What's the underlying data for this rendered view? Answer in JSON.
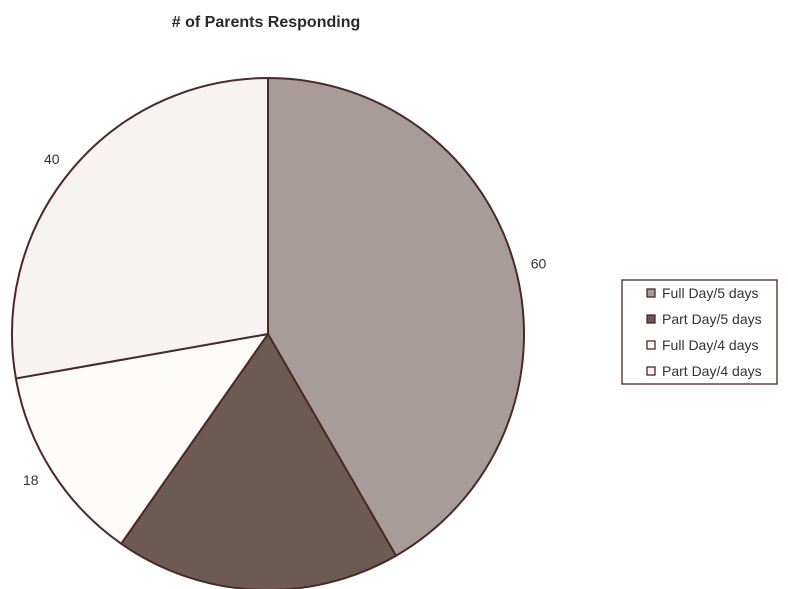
{
  "chart_data": {
    "type": "pie",
    "title": "# of Parents Responding",
    "categories": [
      "Full Day/5 days",
      "Part Day/5 days",
      "Full Day/4 days",
      "Part Day/4 days"
    ],
    "values": [
      60,
      26,
      18,
      40
    ],
    "data_labels": [
      "60",
      "",
      "18",
      "40"
    ],
    "colors": [
      "#a89c9a",
      "#6e5a55",
      "#fdfcfb",
      "#f6f3f2"
    ],
    "outline_color": "#4a2a26",
    "start_angle_deg": 0,
    "direction": "clockwise",
    "legend_placement": "right"
  }
}
